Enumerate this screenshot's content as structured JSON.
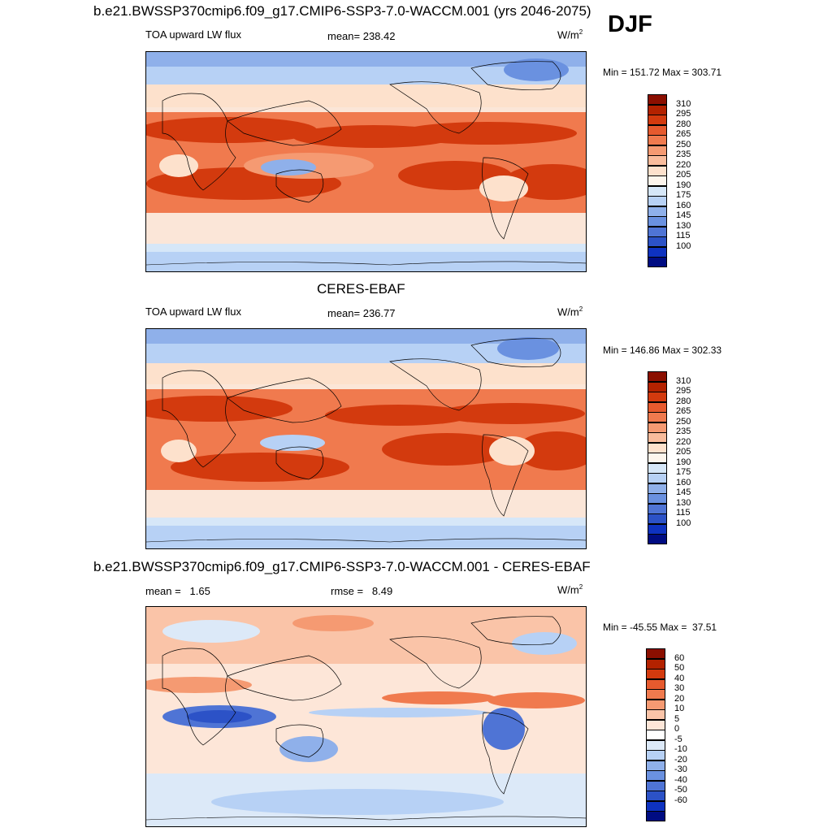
{
  "season": "DJF",
  "colors": {
    "ocean_pale": "#fbe6d8",
    "warm": "#f07a4e",
    "hot": "#d5300b",
    "cold": "#8fb0ea",
    "very_cold": "#4f74d5",
    "pale_blue": "#d2e4f8",
    "coast": "#000000"
  },
  "panels": [
    {
      "id": "model",
      "title": "b.e21.BWSSP370cmip6.f09_g17.CMIP6-SSP3-7.0-WACCM.001 (yrs 2046-2075)",
      "left_label": "TOA upward LW flux",
      "center_label": "mean= 238.42",
      "units": "W/m",
      "units_sup": "2",
      "minmax": "Min = 151.72 Max = 303.71",
      "colorbar": {
        "labels": [
          "310",
          "295",
          "280",
          "265",
          "250",
          "235",
          "220",
          "205",
          "190",
          "175",
          "160",
          "145",
          "130",
          "115",
          "100"
        ],
        "colors": [
          "#8b0f00",
          "#b32200",
          "#d33a0e",
          "#e65a2e",
          "#f07a4e",
          "#f59a72",
          "#f9bc9c",
          "#fde1cc",
          "#fdf5ec",
          "#d6e7f8",
          "#b7d1f5",
          "#8fb0ea",
          "#6a91e0",
          "#4f74d5",
          "#2c52c7",
          "#0e32c0",
          "#000c82"
        ]
      }
    },
    {
      "id": "obs",
      "title": "CERES-EBAF",
      "left_label": "TOA upward LW flux",
      "center_label": "mean= 236.77",
      "units": "W/m",
      "units_sup": "2",
      "minmax": "Min = 146.86 Max = 302.33",
      "colorbar": {
        "labels": [
          "310",
          "295",
          "280",
          "265",
          "250",
          "235",
          "220",
          "205",
          "190",
          "175",
          "160",
          "145",
          "130",
          "115",
          "100"
        ],
        "colors": [
          "#8b0f00",
          "#b32200",
          "#d33a0e",
          "#e65a2e",
          "#f07a4e",
          "#f59a72",
          "#f9bc9c",
          "#fde1cc",
          "#fdf5ec",
          "#d6e7f8",
          "#b7d1f5",
          "#8fb0ea",
          "#6a91e0",
          "#4f74d5",
          "#2c52c7",
          "#0e32c0",
          "#000c82"
        ]
      }
    },
    {
      "id": "diff",
      "title": "b.e21.BWSSP370cmip6.f09_g17.CMIP6-SSP3-7.0-WACCM.001 - CERES-EBAF",
      "left_label": "mean =   1.65",
      "center_label": "rmse =   8.49",
      "units": "W/m",
      "units_sup": "2",
      "minmax": "Min = -45.55 Max =  37.51",
      "colorbar": {
        "labels": [
          "60",
          "50",
          "40",
          "30",
          "20",
          "10",
          "5",
          "0",
          "-5",
          "-10",
          "-20",
          "-30",
          "-40",
          "-50",
          "-60"
        ],
        "colors": [
          "#8b0f00",
          "#b32200",
          "#d33a0e",
          "#e65a2e",
          "#f07a4e",
          "#f59a72",
          "#fac4a8",
          "#fde6d8",
          "#ffffff",
          "#dce9f8",
          "#b7d1f5",
          "#8fb0ea",
          "#6a91e0",
          "#4f74d5",
          "#2c52c7",
          "#0e32c0",
          "#000c82"
        ]
      }
    }
  ]
}
